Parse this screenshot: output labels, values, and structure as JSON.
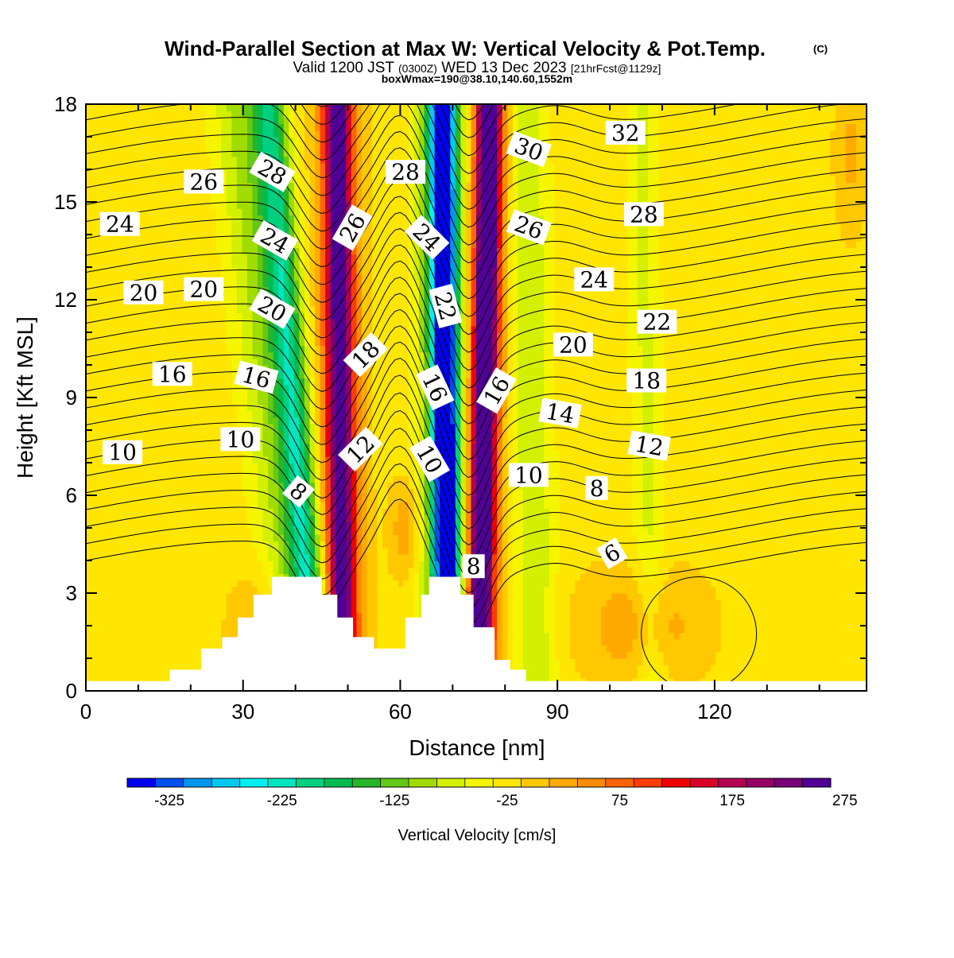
{
  "chart_data": {
    "type": "heatmap",
    "title": "Wind-Parallel Section at Max W: Vertical Velocity & Pot.Temp.",
    "title_mark": "(C)",
    "subtitle_parts": [
      "Valid 1200 JST",
      "(0300Z)",
      "WED 13 Dec 2023",
      "[21hrFcst@1129z]"
    ],
    "subtitle2": "boxWmax=190@38.10,140.60,1552m",
    "xlabel": "Distance [nm]",
    "ylabel": "Height [Kft MSL]",
    "xlim": [
      0,
      149
    ],
    "ylim": [
      0,
      18
    ],
    "xticks": [
      "0",
      "30",
      "60",
      "90",
      "120"
    ],
    "yticks": [
      "0",
      "3",
      "6",
      "9",
      "12",
      "15",
      "18"
    ],
    "colorbar": {
      "label": "Vertical Velocity [cm/s]",
      "ticks": [
        "-325",
        "-225",
        "-125",
        "-25",
        "75",
        "175",
        "275"
      ],
      "colors": [
        "#0000f0",
        "#0050f0",
        "#0096f0",
        "#00c8f0",
        "#00f0f0",
        "#00e6c0",
        "#00d080",
        "#00bc50",
        "#28b428",
        "#64c814",
        "#a0dc00",
        "#d2f000",
        "#f5f500",
        "#ffe600",
        "#ffc800",
        "#ffaa00",
        "#ff8c00",
        "#ff6400",
        "#ff3c00",
        "#f00000",
        "#d80028",
        "#b40050",
        "#960064",
        "#780078",
        "#500096"
      ]
    },
    "terrain": [
      [
        0,
        0.3
      ],
      [
        16,
        0.3
      ],
      [
        16,
        0.65
      ],
      [
        22,
        0.65
      ],
      [
        22,
        1.3
      ],
      [
        26,
        1.3
      ],
      [
        26,
        1.65
      ],
      [
        29,
        1.65
      ],
      [
        29,
        2.25
      ],
      [
        32,
        2.25
      ],
      [
        32,
        2.95
      ],
      [
        35.5,
        2.95
      ],
      [
        35.5,
        3.5
      ],
      [
        45,
        3.5
      ],
      [
        45,
        2.95
      ],
      [
        48,
        2.95
      ],
      [
        48,
        2.25
      ],
      [
        51,
        2.25
      ],
      [
        51,
        1.65
      ],
      [
        55,
        1.65
      ],
      [
        55,
        1.3
      ],
      [
        61,
        1.3
      ],
      [
        61,
        2.25
      ],
      [
        64,
        2.25
      ],
      [
        64,
        2.95
      ],
      [
        65.5,
        2.95
      ],
      [
        65.5,
        3.5
      ],
      [
        71.5,
        3.5
      ],
      [
        71.5,
        2.95
      ],
      [
        74,
        2.95
      ],
      [
        74,
        1.95
      ],
      [
        78,
        1.95
      ],
      [
        78,
        0.95
      ],
      [
        81,
        0.95
      ],
      [
        81,
        0.65
      ],
      [
        84,
        0.65
      ],
      [
        84,
        0.3
      ],
      [
        149,
        0.3
      ]
    ],
    "w_field": {
      "background": -10,
      "features": [
        {
          "kind": "column",
          "w": -80,
          "x_bottom": 42,
          "x_top": 30,
          "width": 6
        },
        {
          "kind": "column",
          "w": -140,
          "x_bottom": 44,
          "x_top": 35,
          "width": 3
        },
        {
          "kind": "column",
          "w": 130,
          "x_bottom": 49,
          "x_top": 48,
          "width": 4
        },
        {
          "kind": "column",
          "w": 190,
          "x_bottom": 49,
          "x_top": 48,
          "width": 2.2
        },
        {
          "kind": "column",
          "w": -150,
          "x_bottom": 69,
          "x_top": 68,
          "width": 4.5
        },
        {
          "kind": "column",
          "w": -300,
          "x_bottom": 69,
          "x_top": 68,
          "width": 2.2
        },
        {
          "kind": "column",
          "w": 170,
          "x_bottom": 75,
          "x_top": 77,
          "width": 3.5
        },
        {
          "kind": "column",
          "w": 260,
          "x_bottom": 75,
          "x_top": 77,
          "width": 1.8
        },
        {
          "kind": "column",
          "w": -60,
          "x_bottom": 86,
          "x_top": 84,
          "width": 4
        },
        {
          "kind": "column",
          "w": -45,
          "x_bottom": 108,
          "x_top": 106,
          "width": 3
        },
        {
          "kind": "blob",
          "w": 55,
          "x": 34,
          "y": 1.8,
          "rx": 6,
          "ry": 1.8
        },
        {
          "kind": "blob",
          "w": 55,
          "x": 61,
          "y": 5.0,
          "rx": 3,
          "ry": 1.5
        },
        {
          "kind": "blob",
          "w": 55,
          "x": 106,
          "y": 2.0,
          "rx": 12,
          "ry": 1.8
        },
        {
          "kind": "blob",
          "w": 40,
          "x": 146,
          "y": 16.5,
          "rx": 3,
          "ry": 2.5
        }
      ]
    },
    "theta_contours": {
      "levels": [
        6,
        8,
        10,
        12,
        14,
        16,
        18,
        20,
        22,
        24,
        26,
        28,
        30,
        32
      ],
      "interval": 1,
      "labels": [
        {
          "text": "24",
          "x": 6.5,
          "y": 14.3,
          "angle": 0
        },
        {
          "text": "26",
          "x": 22.5,
          "y": 15.6,
          "angle": 0
        },
        {
          "text": "28",
          "x": 35.5,
          "y": 15.9,
          "angle": 30
        },
        {
          "text": "24",
          "x": 36,
          "y": 13.8,
          "angle": 30
        },
        {
          "text": "20",
          "x": 11,
          "y": 12.2,
          "angle": 0
        },
        {
          "text": "20",
          "x": 22.5,
          "y": 12.3,
          "angle": 0
        },
        {
          "text": "20",
          "x": 35.5,
          "y": 11.7,
          "angle": 30
        },
        {
          "text": "16",
          "x": 16.5,
          "y": 9.7,
          "angle": 0
        },
        {
          "text": "16",
          "x": 32.5,
          "y": 9.6,
          "angle": 15
        },
        {
          "text": "10",
          "x": 7,
          "y": 7.3,
          "angle": 0
        },
        {
          "text": "10",
          "x": 29.5,
          "y": 7.7,
          "angle": 0
        },
        {
          "text": "8",
          "x": 40.5,
          "y": 6.1,
          "angle": 40
        },
        {
          "text": "26",
          "x": 51,
          "y": 14.2,
          "angle": -60
        },
        {
          "text": "18",
          "x": 53.5,
          "y": 10.3,
          "angle": -45
        },
        {
          "text": "12",
          "x": 52.5,
          "y": 7.4,
          "angle": -45
        },
        {
          "text": "28",
          "x": 61,
          "y": 15.9,
          "angle": 0
        },
        {
          "text": "24",
          "x": 65,
          "y": 13.9,
          "angle": 45
        },
        {
          "text": "22",
          "x": 68.5,
          "y": 11.8,
          "angle": 75
        },
        {
          "text": "16",
          "x": 66.5,
          "y": 9.3,
          "angle": 65
        },
        {
          "text": "10",
          "x": 65.5,
          "y": 7.1,
          "angle": 60
        },
        {
          "text": "8",
          "x": 74,
          "y": 3.8,
          "angle": 0
        },
        {
          "text": "16",
          "x": 78.5,
          "y": 9.2,
          "angle": -60
        },
        {
          "text": "10",
          "x": 84.5,
          "y": 6.6,
          "angle": 0
        },
        {
          "text": "30",
          "x": 84.5,
          "y": 16.6,
          "angle": 20
        },
        {
          "text": "26",
          "x": 84.5,
          "y": 14.2,
          "angle": 20
        },
        {
          "text": "24",
          "x": 97,
          "y": 12.6,
          "angle": 0
        },
        {
          "text": "20",
          "x": 93,
          "y": 10.6,
          "angle": 0
        },
        {
          "text": "14",
          "x": 90.5,
          "y": 8.5,
          "angle": 10
        },
        {
          "text": "8",
          "x": 97.5,
          "y": 6.2,
          "angle": 0
        },
        {
          "text": "6",
          "x": 100.5,
          "y": 4.2,
          "angle": -30
        },
        {
          "text": "32",
          "x": 103,
          "y": 17.1,
          "angle": 0
        },
        {
          "text": "28",
          "x": 106.5,
          "y": 14.6,
          "angle": 0
        },
        {
          "text": "22",
          "x": 109,
          "y": 11.3,
          "angle": 0
        },
        {
          "text": "18",
          "x": 107,
          "y": 9.5,
          "angle": 0
        },
        {
          "text": "12",
          "x": 107.5,
          "y": 7.5,
          "angle": 10
        }
      ]
    }
  }
}
